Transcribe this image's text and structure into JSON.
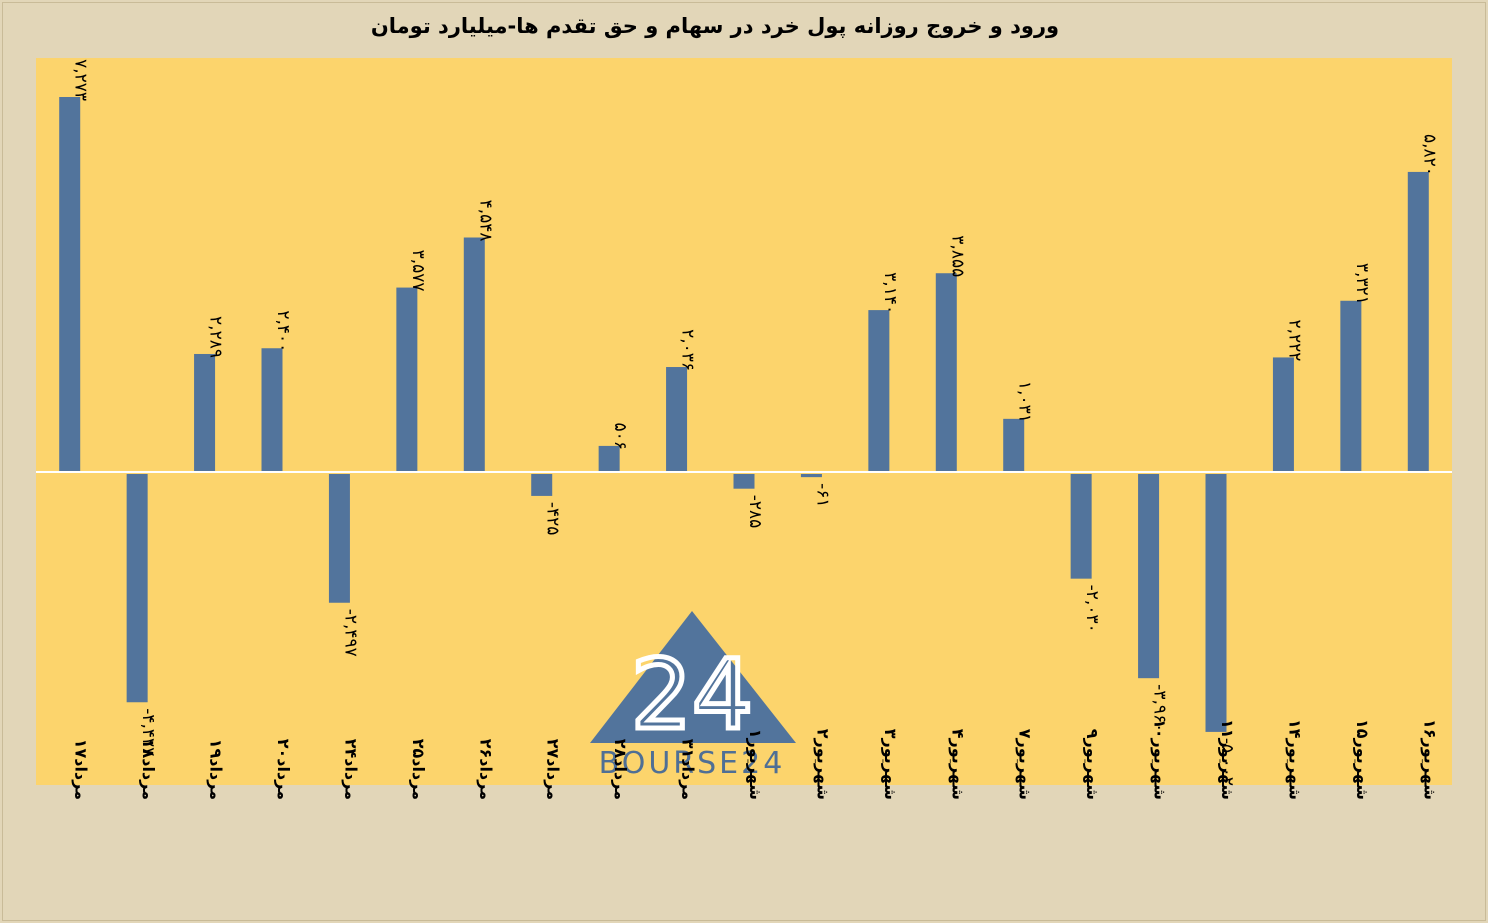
{
  "chart_data": {
    "type": "bar",
    "title": "ورود و خروج روزانه پول خرد در سهام و حق تقدم ها-میلیارد تومان",
    "xlabel": "",
    "ylabel": "",
    "categories": [
      "۱۷مرداد",
      "۱۸مرداد",
      "۱۹مرداد",
      "۲۰مرداد",
      "۲۴مرداد",
      "۲۵مرداد",
      "۲۶مرداد",
      "۲۷مرداد",
      "۲۸مرداد",
      "۳۱مرداد",
      "۱شهریور",
      "۲شهریور",
      "۳شهریور",
      "۴شهریور",
      "۷شهریور",
      "۹شهریور",
      "۱۰شهریور",
      "۱۱شهریور",
      "۱۴شهریور",
      "۱۵شهریور",
      "۱۶شهریور"
    ],
    "values": [
      7273,
      -4427,
      2289,
      2400,
      -2497,
      3577,
      4548,
      -425,
      506,
      2036,
      -285,
      -61,
      3140,
      3855,
      1031,
      -2030,
      -3960,
      -5002,
      2222,
      3321,
      5820
    ],
    "value_labels": [
      "۷,۲۷۳",
      "-۴,۴۲۷",
      "۲,۲۸۹",
      "۲,۴۰۰",
      "-۲,۴۹۷",
      "۳,۵۷۷",
      "۴,۵۴۸",
      "-۴۲۵",
      "۵۰۶",
      "۲,۰۳۶",
      "-۲۸۵",
      "-۶۱",
      "۳,۱۴۰",
      "۳,۸۵۵",
      "۱,۰۳۱",
      "-۲,۰۳۰",
      "-۳,۹۶۰",
      "-۵,۰۰۲",
      "۲,۲۲۲",
      "۳,۳۲۱",
      "۵,۸۲۰"
    ],
    "ylim": [
      -6000,
      8000
    ],
    "grid": false,
    "legend": "none",
    "colors": {
      "bar": "#52749c",
      "plot_bg": "#fcd46c",
      "page_bg": "#e2d6b8",
      "zero_line": "#ffffff"
    }
  },
  "watermark": {
    "logo_number": "24",
    "logo_text": "BOURSE24",
    "logo_color": "#52749c"
  }
}
